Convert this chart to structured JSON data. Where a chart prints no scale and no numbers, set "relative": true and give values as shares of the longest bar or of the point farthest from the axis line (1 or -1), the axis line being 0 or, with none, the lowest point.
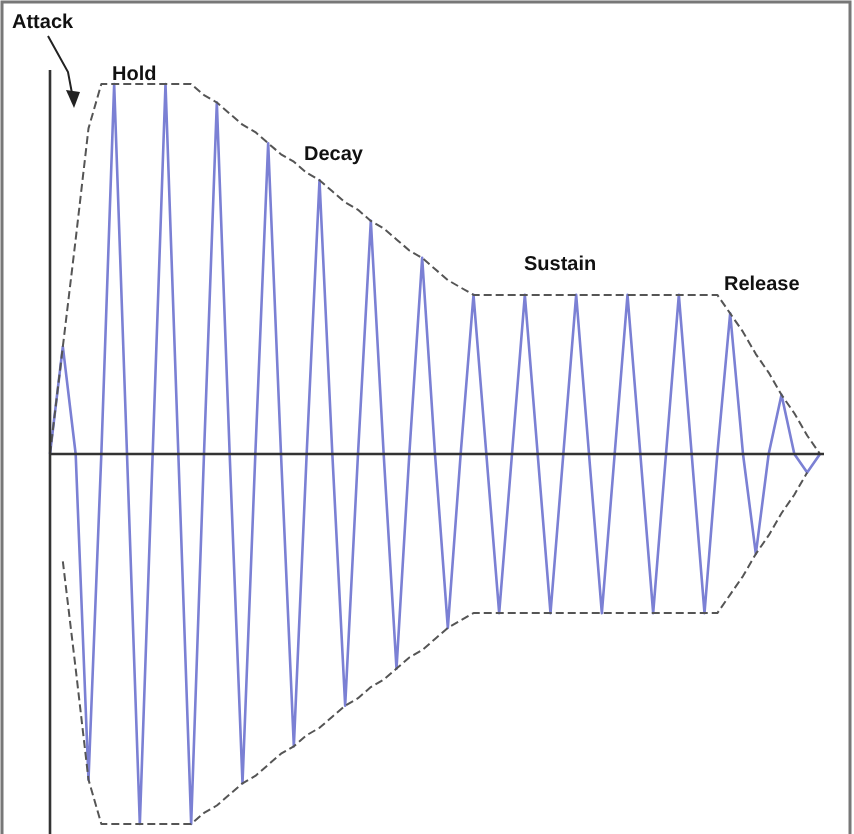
{
  "chart_data": {
    "type": "line",
    "relative": true,
    "marker": "none",
    "categories": [
      null,
      null,
      null,
      null,
      null,
      null,
      null,
      null,
      null,
      null,
      null,
      null,
      null,
      null,
      null,
      null,
      null,
      null,
      null,
      null,
      null,
      null,
      null,
      null,
      null,
      null,
      null,
      null,
      null,
      null,
      null,
      null,
      null,
      null,
      null,
      null,
      null,
      null,
      null,
      null,
      null,
      null,
      null,
      null,
      null,
      null,
      null,
      null,
      null,
      null,
      null,
      null,
      null,
      null,
      null,
      null,
      null,
      null,
      null,
      null,
      null
    ],
    "series": [
      {
        "color": "#7b80d4",
        "line_style": "solid",
        "values": [
          0,
          0.29,
          0,
          -0.88,
          0,
          1,
          0,
          -1,
          0,
          1,
          0,
          -1,
          0,
          0.95,
          0,
          -0.89,
          0,
          0.84,
          0,
          -0.79,
          0,
          0.74,
          0,
          -0.68,
          0,
          0.63,
          0,
          -0.58,
          0,
          0.53,
          0,
          -0.47,
          0,
          0.43,
          0,
          -0.43,
          0,
          0.43,
          0,
          -0.43,
          0,
          0.43,
          0,
          -0.43,
          0,
          0.43,
          0,
          -0.43,
          0,
          0.43,
          0,
          -0.43,
          0,
          0.38,
          0,
          -0.27,
          0,
          0.16,
          0,
          -0.05,
          0
        ]
      },
      {
        "color": "#555555",
        "line_style": "dashed",
        "values": [
          0,
          0.29,
          0.58,
          0.88,
          1,
          1,
          1,
          1,
          1,
          1,
          1,
          1,
          0.97,
          0.95,
          0.92,
          0.89,
          0.87,
          0.84,
          0.81,
          0.79,
          0.76,
          0.74,
          0.71,
          0.68,
          0.66,
          0.63,
          0.61,
          0.58,
          0.55,
          0.53,
          0.5,
          0.47,
          0.45,
          0.43,
          0.43,
          0.43,
          0.43,
          0.43,
          0.43,
          0.43,
          0.43,
          0.43,
          0.43,
          0.43,
          0.43,
          0.43,
          0.43,
          0.43,
          0.43,
          0.43,
          0.43,
          0.43,
          0.43,
          0.38,
          0.33,
          0.27,
          0.22,
          0.16,
          0.11,
          0.05,
          0
        ]
      },
      {
        "color": "#555555",
        "line_style": "dashed",
        "values": [
          null,
          -0.29,
          -0.58,
          -0.88,
          -1,
          -1,
          -1,
          -1,
          -1,
          -1,
          -1,
          -1,
          -0.97,
          -0.95,
          -0.92,
          -0.89,
          -0.87,
          -0.84,
          -0.81,
          -0.79,
          -0.76,
          -0.74,
          -0.71,
          -0.68,
          -0.66,
          -0.63,
          -0.61,
          -0.58,
          -0.55,
          -0.53,
          -0.5,
          -0.47,
          -0.45,
          -0.43,
          -0.43,
          -0.43,
          -0.43,
          -0.43,
          -0.43,
          -0.43,
          -0.43,
          -0.43,
          -0.43,
          -0.43,
          -0.43,
          -0.43,
          -0.43,
          -0.43,
          -0.43,
          -0.43,
          -0.43,
          -0.43,
          -0.43,
          -0.38,
          -0.33,
          -0.27,
          -0.22,
          -0.16,
          -0.11,
          -0.05,
          null
        ]
      }
    ],
    "annotations": [
      "Attack",
      "Hold",
      "Decay",
      "Sustain",
      "Release"
    ]
  }
}
